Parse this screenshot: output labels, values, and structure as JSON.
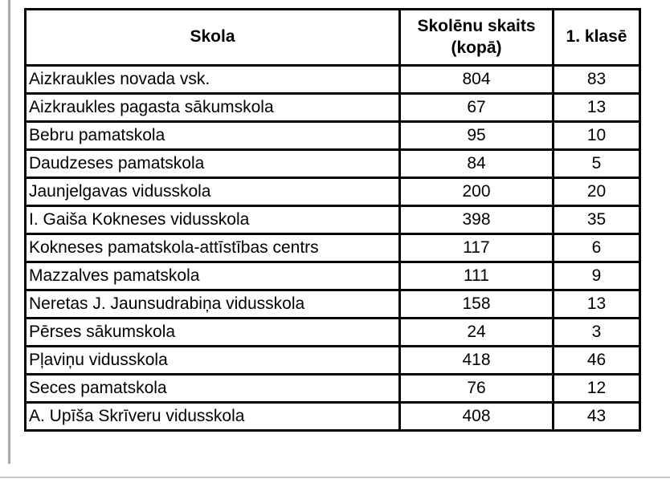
{
  "page": {
    "background": "#ffffff",
    "left_rule_color": "#a8a8a8",
    "bottom_rule_color": "#c9c9c9"
  },
  "table": {
    "border_color": "#000000",
    "headers": [
      "Skola",
      "Skolēnu skaits (kopā)",
      "1. klasē"
    ],
    "rows": [
      {
        "school": "Aizkraukles novada vsk.",
        "total": "804",
        "first_grade": "83"
      },
      {
        "school": "Aizkraukles pagasta sākumskola",
        "total": "67",
        "first_grade": "13"
      },
      {
        "school": "Bebru pamatskola",
        "total": "95",
        "first_grade": "10"
      },
      {
        "school": "Daudzeses pamatskola",
        "total": "84",
        "first_grade": "5"
      },
      {
        "school": "Jaunjelgavas vidusskola",
        "total": "200",
        "first_grade": "20"
      },
      {
        "school": "I. Gaiša Kokneses vidusskola",
        "total": "398",
        "first_grade": "35"
      },
      {
        "school": "Kokneses pamatskola-attīstības centrs",
        "total": "117",
        "first_grade": "6"
      },
      {
        "school": "Mazzalves pamatskola",
        "total": "111",
        "first_grade": "9"
      },
      {
        "school": "Neretas J. Jaunsudrabiņa vidusskola",
        "total": "158",
        "first_grade": "13"
      },
      {
        "school": "Pērses sākumskola",
        "total": "24",
        "first_grade": "3"
      },
      {
        "school": "Pļaviņu vidusskola",
        "total": "418",
        "first_grade": "46"
      },
      {
        "school": "Seces pamatskola",
        "total": "76",
        "first_grade": "12"
      },
      {
        "school": "A. Upīša Skrīveru vidusskola",
        "total": "408",
        "first_grade": "43"
      }
    ]
  },
  "chart_data": {
    "type": "table",
    "title": "",
    "columns": [
      "Skola",
      "Skolēnu skaits (kopā)",
      "1. klasē"
    ],
    "categories": [
      "Aizkraukles novada vsk.",
      "Aizkraukles pagasta sākumskola",
      "Bebru pamatskola",
      "Daudzeses pamatskola",
      "Jaunjelgavas vidusskola",
      "I. Gaiša Kokneses vidusskola",
      "Kokneses pamatskola-attīstības centrs",
      "Mazzalves pamatskola",
      "Neretas J. Jaunsudrabiņa vidusskola",
      "Pērses sākumskola",
      "Pļaviņu vidusskola",
      "Seces pamatskola",
      "A. Upīša Skrīveru vidusskola"
    ],
    "series": [
      {
        "name": "Skolēnu skaits (kopā)",
        "values": [
          804,
          67,
          95,
          84,
          200,
          398,
          117,
          111,
          158,
          24,
          418,
          76,
          408
        ]
      },
      {
        "name": "1. klasē",
        "values": [
          83,
          13,
          10,
          5,
          20,
          35,
          6,
          9,
          13,
          3,
          46,
          12,
          43
        ]
      }
    ]
  }
}
